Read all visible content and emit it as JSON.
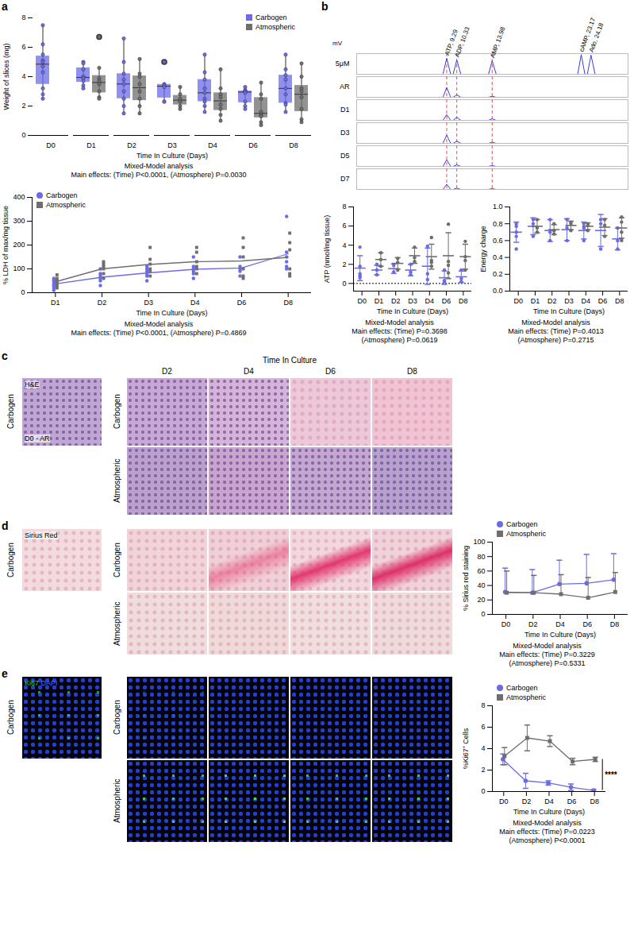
{
  "figure": {
    "panel_labels": [
      "a",
      "b",
      "c",
      "d",
      "e"
    ],
    "micrographs": {
      "time_header": "Time In Culture",
      "reference_label": "D0 - AR",
      "columns": [
        "D2",
        "D4",
        "D6",
        "D8"
      ],
      "rows": [
        "Carbogen",
        "Atmospheric"
      ],
      "stains": [
        [
          "H&E"
        ],
        [
          "Sirius Red"
        ],
        [
          "Ki67",
          "DAPI"
        ]
      ]
    }
  },
  "chart_data": [
    {
      "type": "box",
      "ylabel": "Weight of slices (mg)",
      "xlabel": "Time In Culture (Days)",
      "categories": [
        "D0",
        "D1",
        "D2",
        "D3",
        "D4",
        "D6",
        "D8"
      ],
      "ylim": [
        0,
        8
      ],
      "yticks": [
        0,
        2,
        4,
        6,
        8
      ],
      "legend": "top-right",
      "caption": [
        "Mixed-Model analysis",
        "Main effects: (Time) P<0.0001, (Atmosphere) P=0.0030"
      ],
      "series": [
        {
          "name": "Carbogen",
          "color": "#6b6be8",
          "points": [
            [
              7.5,
              6.2,
              5.5,
              5.1,
              5.0,
              4.7,
              4.3,
              3.2,
              2.8,
              2.5
            ],
            [
              5.0,
              4.9,
              4.5,
              4.0,
              3.9,
              3.7,
              3.4,
              3.2
            ],
            [
              6.6,
              5.0,
              4.2,
              3.8,
              3.5,
              3.0,
              2.5,
              2.0,
              1.5
            ],
            [
              5.0,
              3.5,
              3.4,
              3.3,
              2.3,
              2.3
            ],
            [
              5.5,
              4.3,
              3.8,
              3.2,
              2.9,
              2.5,
              2.3,
              2.0,
              1.6
            ],
            [
              3.3,
              3.1,
              3.0,
              3.0,
              2.9,
              2.3,
              2.0,
              1.8
            ],
            [
              5.5,
              4.5,
              4.1,
              3.8,
              3.2,
              2.8,
              2.2,
              2.1,
              1.6
            ]
          ]
        },
        {
          "name": "Atmospheric",
          "color": "#6e6e6e",
          "points": [
            [],
            [
              6.7,
              4.6,
              3.9,
              3.7,
              3.5,
              3.0,
              2.6,
              2.5
            ],
            [
              5.2,
              4.2,
              4.0,
              3.5,
              3.0,
              2.5,
              2.0,
              1.5
            ],
            [
              3.3,
              2.8,
              2.5,
              2.3,
              2.0,
              1.8
            ],
            [
              4.5,
              3.2,
              2.8,
              2.6,
              2.1,
              1.8,
              1.4,
              1.0
            ],
            [
              3.6,
              2.8,
              2.5,
              1.6,
              1.4,
              1.3,
              0.9,
              0.7
            ],
            [
              4.9,
              4.0,
              3.2,
              3.0,
              2.6,
              1.8,
              1.1,
              0.9
            ]
          ]
        }
      ]
    },
    {
      "type": "scatter",
      "ylabel": "% LDH of max/mg tissue",
      "xlabel": "Time In Culture (Days)",
      "categories": [
        "D1",
        "D2",
        "D3",
        "D4",
        "D6",
        "D8"
      ],
      "ylim": [
        0,
        400
      ],
      "yticks": [
        0,
        100,
        200,
        300,
        400
      ],
      "legend": "top-left",
      "caption": [
        "Mixed-Model analysis",
        "Main effects: (Time) P<0.0001, (Atmosphere) P=0.4869"
      ],
      "series": [
        {
          "name": "Carbogen",
          "color": "#6b6be8",
          "marker": "circle",
          "line_style": "solid",
          "points": [
            [
              10,
              20,
              30,
              40,
              50,
              55,
              60,
              30
            ],
            [
              30,
              50,
              60,
              70,
              80,
              100
            ],
            [
              50,
              70,
              80,
              90,
              100,
              110
            ],
            [
              60,
              80,
              90,
              100,
              110,
              150
            ],
            [
              70,
              90,
              100,
              110,
              150
            ],
            [
              100,
              110,
              130,
              150,
              170,
              320
            ]
          ]
        },
        {
          "name": "Atmospheric",
          "color": "#6e6e6e",
          "marker": "square",
          "line_style": "solid",
          "points": [
            [
              20,
              30,
              40,
              50,
              60,
              75
            ],
            [
              60,
              80,
              100,
              110,
              120,
              130
            ],
            [
              70,
              90,
              100,
              120,
              140,
              190
            ],
            [
              80,
              100,
              110,
              130,
              170,
              190
            ],
            [
              60,
              70,
              100,
              150,
              190,
              230
            ],
            [
              70,
              80,
              100,
              180,
              210,
              250
            ]
          ]
        }
      ]
    },
    {
      "type": "line",
      "ylabel": "mV",
      "tick_labels": false,
      "x": [
        0,
        8.9,
        9.29,
        9.7,
        9.95,
        10.33,
        10.75,
        13.6,
        13.98,
        14.4,
        22.8,
        23.17,
        23.55,
        23.8,
        24.18,
        24.6,
        28
      ],
      "xlim": [
        0,
        28
      ],
      "ylim": [
        0,
        80
      ],
      "series": [
        {
          "name": "5μM",
          "color": "#3b3bdb",
          "values": [
            0,
            0,
            62,
            0,
            0,
            55,
            0,
            0,
            52,
            0,
            0,
            76,
            0,
            0,
            74,
            0,
            0
          ]
        },
        {
          "name": "AR",
          "color": "#3b3bdb",
          "values": [
            0,
            0,
            38,
            0,
            0,
            10,
            0,
            0,
            4,
            0,
            0,
            0,
            0,
            0,
            0,
            0,
            0
          ]
        },
        {
          "name": "D1",
          "color": "#3b3bdb",
          "values": [
            0,
            0,
            22,
            0,
            0,
            12,
            0,
            0,
            6,
            0,
            0,
            0,
            0,
            0,
            0,
            0,
            0
          ]
        },
        {
          "name": "D3",
          "color": "#3b3bdb",
          "values": [
            0,
            0,
            32,
            0,
            0,
            9,
            0,
            0,
            4,
            0,
            0,
            0,
            0,
            0,
            0,
            0,
            0
          ]
        },
        {
          "name": "D5",
          "color": "#3b3bdb",
          "values": [
            0,
            0,
            26,
            0,
            0,
            6,
            0,
            0,
            3,
            0,
            0,
            0,
            0,
            0,
            0,
            0,
            0
          ]
        },
        {
          "name": "D7",
          "color": "#3b3bdb",
          "values": [
            0,
            0,
            20,
            0,
            0,
            5,
            0,
            0,
            3,
            0,
            0,
            0,
            0,
            0,
            0,
            0,
            0
          ]
        }
      ],
      "annotations": [
        {
          "x": 9.29,
          "y": 62,
          "text": "ATP, 9.29"
        },
        {
          "x": 10.33,
          "y": 55,
          "text": "ADP, 10.33"
        },
        {
          "x": 13.98,
          "y": 52,
          "text": "AMP, 13.98"
        },
        {
          "x": 23.17,
          "y": 76,
          "text": "cAMP, 23.17"
        },
        {
          "x": 24.18,
          "y": 74,
          "text": "Ado, 24.18"
        }
      ],
      "reference_lines": [
        {
          "x": 9.29,
          "color": "#e05555",
          "line_style": "dashed"
        },
        {
          "x": 10.33,
          "color": "#e05555",
          "line_style": "dashed"
        },
        {
          "x": 13.98,
          "color": "#e05555",
          "line_style": "dashed"
        }
      ]
    },
    {
      "type": "scatter",
      "ylabel": "ATP (nmol/mg tissue)",
      "xlabel": "Time In Culture (Days)",
      "categories": [
        "D0",
        "D1",
        "D2",
        "D3",
        "D4",
        "D6",
        "D8"
      ],
      "ylim": [
        -0.8,
        8
      ],
      "yticks": [
        0,
        2,
        4,
        6,
        8
      ],
      "reference_lines": [
        {
          "y": 0,
          "line_style": "dotted"
        }
      ],
      "caption": [
        "Mixed-Model analysis",
        "Main effects: (Time) P=0.3698",
        "(Atmosphere) P=0.0619"
      ],
      "series": [
        {
          "name": "Carbogen",
          "color": "#6b6be8",
          "marker": "circle",
          "values": [
            1.6,
            1.4,
            1.55,
            1.4,
            1.8,
            0.6,
            0.7
          ],
          "error": [
            1.3,
            0.5,
            0.5,
            0.6,
            1.9,
            0.7,
            0.6
          ],
          "points": [
            [
              3.8,
              1.8,
              1.0,
              0.8,
              0.6
            ],
            [
              2.0,
              1.4,
              0.9
            ],
            [
              1.9,
              1.2
            ],
            [
              2.0,
              1.2,
              0.9
            ],
            [
              3.9,
              1.0,
              0.4
            ],
            [
              1.4,
              0.3,
              0.2
            ],
            [
              1.4,
              0.5,
              0.2
            ]
          ]
        },
        {
          "name": "Atmospheric",
          "color": "#6e6e6e",
          "marker": "circle",
          "values": [
            null,
            2.5,
            2.1,
            2.9,
            2.8,
            2.9,
            2.8
          ],
          "error": [
            null,
            0.7,
            0.6,
            0.8,
            1.3,
            2.4,
            1.3
          ],
          "points": [
            [],
            [
              3.2,
              2.5,
              1.8
            ],
            [
              2.6,
              2.2,
              1.4
            ],
            [
              3.8,
              2.7,
              2.3
            ],
            [
              4.8,
              2.4,
              2.2,
              1.8
            ],
            [
              6.2,
              2.3,
              1.9,
              1.1
            ],
            [
              4.4,
              2.8,
              2.4,
              1.4
            ]
          ]
        }
      ]
    },
    {
      "type": "scatter",
      "ylabel": "Energy charge",
      "xlabel": "Time In Culture (Days)",
      "categories": [
        "D0",
        "D1",
        "D2",
        "D3",
        "D4",
        "D6",
        "D8"
      ],
      "ylim": [
        0,
        1
      ],
      "yticks": [
        {
          "value": 0,
          "label": "0.0"
        },
        {
          "value": 0.2,
          "label": "0.2"
        },
        {
          "value": 0.4,
          "label": "0.4"
        },
        {
          "value": 0.6,
          "label": "0.6"
        },
        {
          "value": 0.8,
          "label": "0.8"
        },
        {
          "value": 1,
          "label": "1.0"
        }
      ],
      "caption": [
        "Mixed-Model analysis",
        "Main effects: (Time) P=0.4013",
        "(Atmosphere) P=0.2715"
      ],
      "series": [
        {
          "name": "Carbogen",
          "color": "#6b6be8",
          "marker": "circle",
          "values": [
            0.7,
            0.77,
            0.72,
            0.73,
            0.72,
            0.72,
            0.62
          ],
          "error": [
            0.12,
            0.1,
            0.13,
            0.13,
            0.1,
            0.19,
            0.13
          ],
          "points": [
            [
              0.8,
              0.77,
              0.7,
              0.65,
              0.5
            ],
            [
              0.85,
              0.8,
              0.65
            ],
            [
              0.85,
              0.7,
              0.6
            ],
            [
              0.85,
              0.75,
              0.6
            ],
            [
              0.8,
              0.75,
              0.6
            ],
            [
              0.85,
              0.8,
              0.5
            ],
            [
              0.75,
              0.6,
              0.5
            ]
          ]
        },
        {
          "name": "Atmospheric",
          "color": "#6e6e6e",
          "marker": "circle",
          "values": [
            null,
            0.77,
            0.73,
            0.78,
            0.77,
            0.76,
            0.75
          ],
          "error": [
            null,
            0.08,
            0.06,
            0.05,
            0.04,
            0.1,
            0.12
          ],
          "points": [
            [],
            [
              0.85,
              0.75,
              0.7
            ],
            [
              0.8,
              0.72,
              0.68
            ],
            [
              0.82,
              0.8,
              0.72
            ],
            [
              0.8,
              0.78,
              0.72
            ],
            [
              0.85,
              0.78,
              0.65
            ],
            [
              0.88,
              0.82,
              0.7,
              0.6
            ]
          ]
        }
      ]
    },
    {
      "type": "line",
      "ylabel": "% Sirius red staining",
      "xlabel": "Time In Culture (Days)",
      "categories": [
        "D0",
        "D2",
        "D4",
        "D6",
        "D8"
      ],
      "ylim": [
        0,
        100
      ],
      "yticks": [
        0,
        20,
        40,
        60,
        80,
        100
      ],
      "legend": "top-left",
      "caption": [
        "Mixed-Model analysis",
        "Main effects: (Time) P=0.3229",
        "(Atmosphere) P=0.5331"
      ],
      "series": [
        {
          "name": "Carbogen",
          "color": "#6b6be8",
          "marker": "circle",
          "values": [
            31,
            30,
            42,
            43,
            48
          ],
          "error": [
            33,
            32,
            33,
            40,
            36
          ]
        },
        {
          "name": "Atmospheric",
          "color": "#6e6e6e",
          "marker": "square",
          "values": [
            30,
            30,
            28,
            23,
            31
          ],
          "error": [
            30,
            24,
            27,
            28,
            27
          ]
        }
      ]
    },
    {
      "type": "line",
      "ylabel": "%Ki67⁺ Cells",
      "xlabel": "Time In Culture (Days)",
      "categories": [
        "D0",
        "D2",
        "D4",
        "D6",
        "D8"
      ],
      "ylim": [
        0,
        8
      ],
      "yticks": [
        0,
        2,
        4,
        6,
        8
      ],
      "legend": "top-left",
      "caption": [
        "Mixed-Model analysis",
        "Main effects: (Time) P=0.0223",
        "(Atmosphere) P<0.0001"
      ],
      "significance": {
        "category": "D8",
        "label": "****"
      },
      "series": [
        {
          "name": "Carbogen",
          "color": "#6b6be8",
          "marker": "circle",
          "values": [
            3.0,
            1.0,
            0.8,
            0.4,
            0.1
          ],
          "error": [
            0.5,
            0.7,
            0.2,
            0.3,
            0.1
          ]
        },
        {
          "name": "Atmospheric",
          "color": "#6e6e6e",
          "marker": "square",
          "values": [
            3.3,
            5.0,
            4.7,
            2.8,
            3.0
          ],
          "error": [
            0.8,
            1.2,
            0.5,
            0.3,
            0.2
          ]
        }
      ]
    }
  ]
}
